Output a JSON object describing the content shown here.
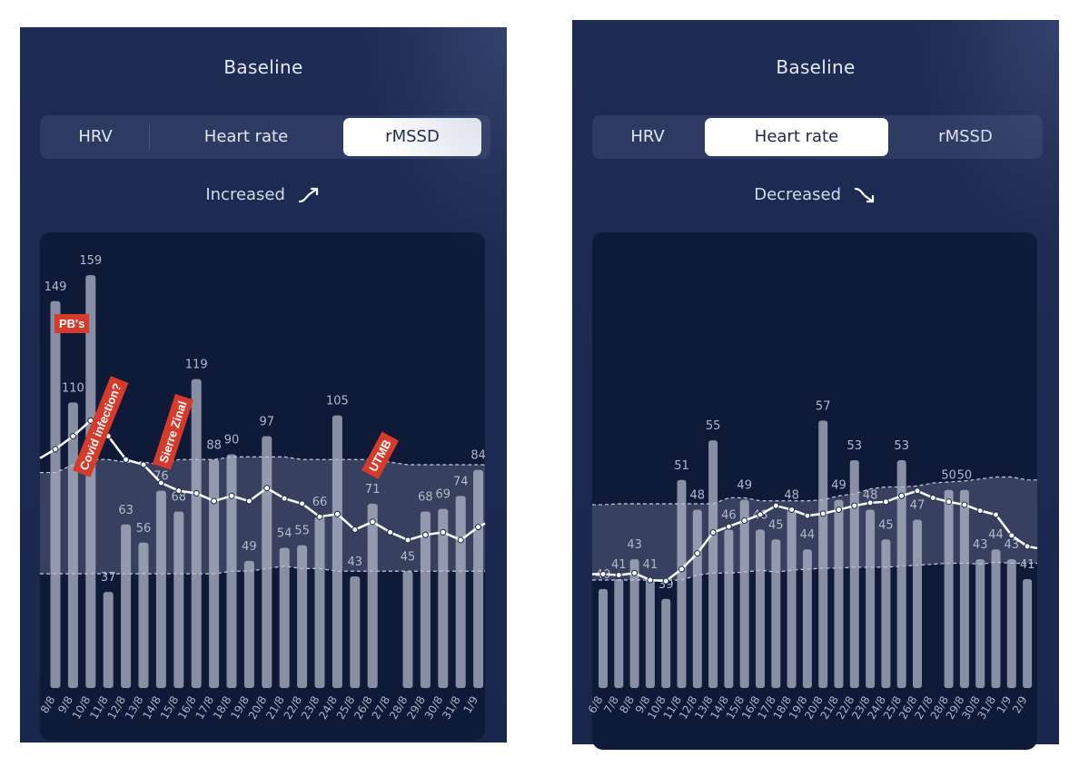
{
  "panels": [
    {
      "title": "Baseline",
      "segments": [
        "HRV",
        "Heart rate",
        "rMSSD"
      ],
      "active_segment": 2,
      "trend": {
        "label": "Increased",
        "direction": "up"
      },
      "annotations": [
        "PB's",
        "Covid infection?",
        "Sierre Zinal",
        "UTMB"
      ]
    },
    {
      "title": "Baseline",
      "segments": [
        "HRV",
        "Heart rate",
        "rMSSD"
      ],
      "active_segment": 1,
      "trend": {
        "label": "Decreased",
        "direction": "down"
      },
      "annotations": []
    }
  ],
  "colors": {
    "panel_bg": "#1e2b52",
    "chart_bg": "#0f1a38",
    "bar": "#8c93a8",
    "band": "#5a6380",
    "line": "#ffffff",
    "annotation": "#d63a2a"
  },
  "chart_data": [
    {
      "type": "bar",
      "title": "",
      "xlabel": "",
      "ylabel": "",
      "categories": [
        "8/8",
        "9/8",
        "10/8",
        "11/8",
        "12/8",
        "13/8",
        "14/8",
        "15/8",
        "16/8",
        "17/8",
        "18/8",
        "19/8",
        "20/8",
        "21/8",
        "22/8",
        "23/8",
        "24/8",
        "25/8",
        "26/8",
        "27/8",
        "28/8",
        "29/8",
        "30/8",
        "31/8",
        "1/9"
      ],
      "values": [
        149,
        110,
        159,
        37,
        63,
        56,
        76,
        68,
        119,
        88,
        90,
        49,
        97,
        54,
        55,
        66,
        105,
        43,
        71,
        null,
        45,
        68,
        69,
        74,
        84
      ],
      "labels": [
        "149",
        "110",
        "159",
        "37",
        "63",
        "56",
        "76",
        "68",
        "119",
        "88",
        "90",
        "49",
        "97",
        "54",
        "55",
        "66",
        "105",
        "43",
        "71",
        "",
        "45",
        "68",
        "69",
        "74",
        "84"
      ],
      "baseline": [
        92,
        97,
        103,
        97,
        88,
        86,
        79,
        76,
        75,
        72,
        74,
        72,
        77,
        73,
        71,
        66,
        67,
        61,
        64,
        60,
        57,
        59,
        60,
        57,
        62
      ],
      "band_upper": [
        83,
        86,
        88,
        88,
        87,
        87,
        86,
        88,
        88,
        88,
        89,
        89,
        89,
        89,
        88,
        88,
        88,
        88,
        88,
        87,
        86,
        86,
        86,
        86,
        86
      ],
      "band_lower": [
        44,
        44,
        44,
        44,
        44,
        44,
        44,
        44,
        44,
        44,
        45,
        45,
        46,
        47,
        46,
        46,
        45,
        45,
        45,
        45,
        45,
        45,
        45,
        45,
        45
      ],
      "ylim": [
        0,
        165
      ]
    },
    {
      "type": "bar",
      "title": "",
      "xlabel": "",
      "ylabel": "",
      "categories": [
        "6/8",
        "7/8",
        "8/8",
        "9/8",
        "10/8",
        "11/8",
        "12/8",
        "13/8",
        "14/8",
        "15/8",
        "16/8",
        "17/8",
        "18/8",
        "19/8",
        "20/8",
        "21/8",
        "22/8",
        "23/8",
        "24/8",
        "25/8",
        "26/8",
        "27/8",
        "28/8",
        "29/8",
        "30/8",
        "31/8",
        "1/9",
        "2/9"
      ],
      "values": [
        40,
        41,
        43,
        41,
        39,
        51,
        48,
        55,
        46,
        49,
        46,
        45,
        48,
        44,
        57,
        49,
        53,
        48,
        45,
        53,
        47,
        null,
        50,
        50,
        43,
        44,
        43,
        41
      ],
      "labels": [
        "40",
        "41",
        "43",
        "41",
        "39",
        "51",
        "48",
        "55",
        "46",
        "49",
        "46",
        "45",
        "48",
        "44",
        "57",
        "49",
        "53",
        "48",
        "45",
        "53",
        "47",
        "",
        "50",
        "50",
        "43",
        "44",
        "43",
        "41"
      ],
      "baseline": [
        41.5,
        41.4,
        41.6,
        40.9,
        40.8,
        42.0,
        43.6,
        45.7,
        46.3,
        46.9,
        47.5,
        48.4,
        48.0,
        47.4,
        47.6,
        48.0,
        48.4,
        48.7,
        48.8,
        49.4,
        49.9,
        49.2,
        48.8,
        48.5,
        47.9,
        47.5,
        45.4,
        44.3
      ],
      "band_upper": [
        48.5,
        48.6,
        48.6,
        48.6,
        48.6,
        48.6,
        48.6,
        48.6,
        49.2,
        49.2,
        48.9,
        48.9,
        48.9,
        48.9,
        49.0,
        49.4,
        49.6,
        50.1,
        50.3,
        50.3,
        50.4,
        50.7,
        50.8,
        50.9,
        51.1,
        51.3,
        51.3,
        51.0
      ],
      "band_lower": [
        40.9,
        40.9,
        40.9,
        40.9,
        40.9,
        40.9,
        41.4,
        41.6,
        41.6,
        41.7,
        41.9,
        41.7,
        41.9,
        42.0,
        42.1,
        42.1,
        42.2,
        42.2,
        42.2,
        42.3,
        42.4,
        42.5,
        42.6,
        42.6,
        42.5,
        42.7,
        42.6,
        42.6
      ],
      "ylim": [
        30,
        65
      ]
    }
  ]
}
